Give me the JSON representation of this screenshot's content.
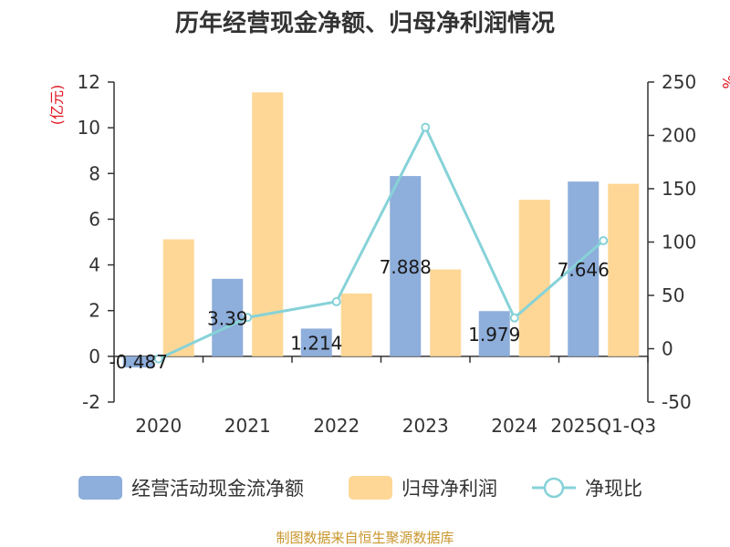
{
  "chart_data": {
    "type": "bar",
    "title": "历年经营现金净额、归母净利润情况",
    "categories": [
      "2020",
      "2021",
      "2022",
      "2023",
      "2024",
      "2025Q1-Q3"
    ],
    "y_left": {
      "unit_label": "(亿元)",
      "ticks": [
        "12",
        "10",
        "8",
        "6",
        "4",
        "2",
        "0",
        "-2"
      ],
      "range": [
        -2,
        12
      ]
    },
    "y_right": {
      "unit_label": "%",
      "ticks": [
        "250",
        "200",
        "150",
        "100",
        "50",
        "0",
        "-50"
      ],
      "range": [
        -50,
        250
      ]
    },
    "series": [
      {
        "name": "经营活动现金流净额",
        "kind": "bar",
        "axis": "left",
        "color": "#8eaedb",
        "values": [
          -0.487,
          3.39,
          1.214,
          7.888,
          1.979,
          7.646
        ],
        "labels": [
          "-0.487",
          "3.39",
          "1.214",
          "7.888",
          "1.979",
          "7.646"
        ]
      },
      {
        "name": "归母净利润",
        "kind": "bar",
        "axis": "left",
        "color": "#fed796",
        "values": [
          5.12,
          11.55,
          2.75,
          3.8,
          6.85,
          7.55
        ]
      },
      {
        "name": "净现比",
        "kind": "line",
        "axis": "right",
        "color": "#86d2d8",
        "values": [
          -9.5,
          29.3,
          44.1,
          207.6,
          28.9,
          101.3
        ]
      }
    ],
    "grid": false,
    "legend_position": "bottom"
  },
  "source": "制图数据来自恒生聚源数据库"
}
